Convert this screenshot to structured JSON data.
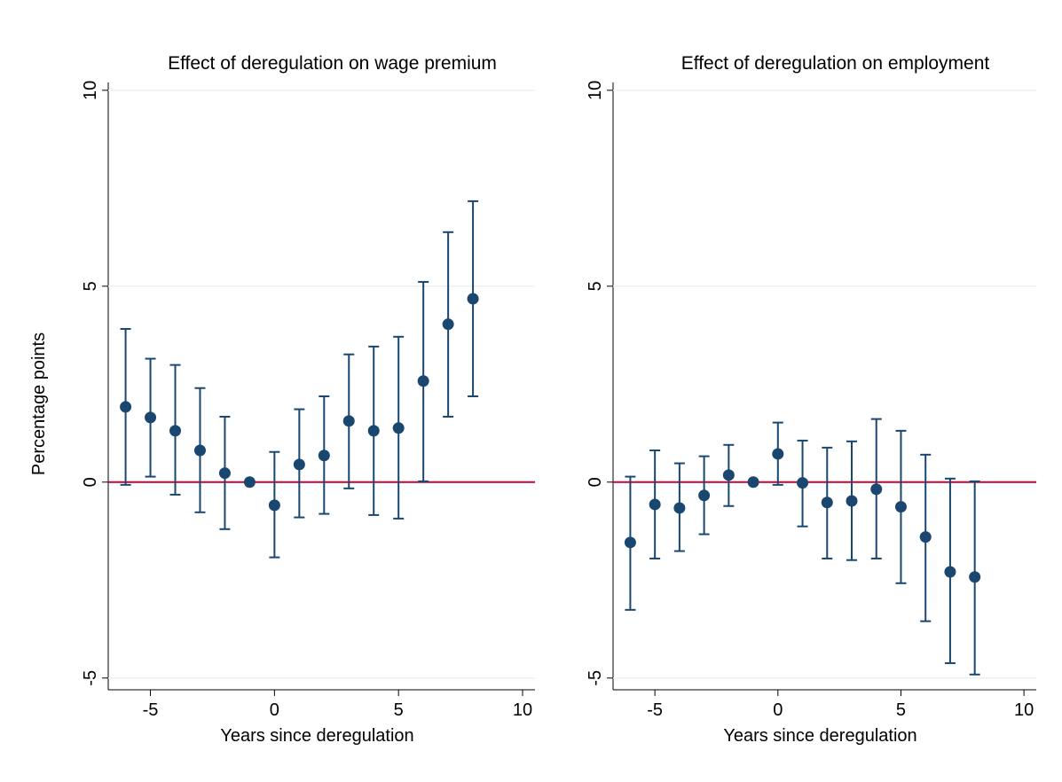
{
  "chart_data": [
    {
      "type": "errorbar",
      "title": "Effect of deregulation on wage premium",
      "x_label": "Years since deregulation",
      "y_label": "Percentage points",
      "x": [
        -6,
        -5,
        -4,
        -3,
        -2,
        -1,
        0,
        1,
        2,
        3,
        4,
        5,
        6,
        7,
        8
      ],
      "series": [
        {
          "color": "#1a476f",
          "values": [
            1.92,
            1.65,
            1.31,
            0.81,
            0.23,
            0,
            -0.59,
            0.45,
            0.68,
            1.56,
            1.31,
            1.38,
            2.58,
            4.03,
            4.68
          ],
          "ci_upper": [
            3.91,
            3.15,
            2.99,
            2.4,
            1.67,
            null,
            0.77,
            1.86,
            2.19,
            3.26,
            3.46,
            3.71,
            5.11,
            6.38,
            7.17
          ],
          "ci_lower": [
            -0.07,
            0.14,
            -0.32,
            -0.77,
            -1.2,
            null,
            -1.92,
            -0.9,
            -0.81,
            -0.16,
            -0.84,
            -0.93,
            0.02,
            1.67,
            2.19
          ]
        }
      ],
      "xlim": [
        -6.7,
        10.5
      ],
      "xticks": [
        -5,
        0,
        5,
        10
      ],
      "ylim": [
        -5.3,
        10.2
      ],
      "yticks": [
        -5,
        0,
        5,
        10
      ],
      "reference_line": {
        "value": 0,
        "color": "#c10534"
      },
      "grid": true
    },
    {
      "type": "errorbar",
      "title": "Effect of deregulation on employment",
      "x_label": "Years since deregulation",
      "x": [
        -6,
        -5,
        -4,
        -3,
        -2,
        -1,
        0,
        1,
        2,
        3,
        4,
        5,
        6,
        7,
        8
      ],
      "series": [
        {
          "color": "#1a476f",
          "values": [
            -1.54,
            -0.57,
            -0.66,
            -0.34,
            0.18,
            0,
            0.72,
            -0.02,
            -0.52,
            -0.48,
            -0.18,
            -0.63,
            -1.4,
            -2.29,
            -2.42
          ],
          "ci_upper": [
            0.14,
            0.81,
            0.48,
            0.66,
            0.95,
            null,
            1.52,
            1.06,
            0.88,
            1.04,
            1.61,
            1.31,
            0.7,
            0.09,
            0.02
          ],
          "ci_lower": [
            -3.26,
            -1.95,
            -1.76,
            -1.33,
            -0.61,
            null,
            -0.07,
            -1.13,
            -1.95,
            -1.99,
            -1.95,
            -2.58,
            -3.55,
            -4.62,
            -4.91
          ]
        }
      ],
      "xlim": [
        -6.7,
        10.5
      ],
      "xticks": [
        -5,
        0,
        5,
        10
      ],
      "ylim": [
        -5.3,
        10.2
      ],
      "yticks": [
        -5,
        0,
        5,
        10
      ],
      "reference_line": {
        "value": 0,
        "color": "#c10534"
      },
      "grid": true
    }
  ]
}
